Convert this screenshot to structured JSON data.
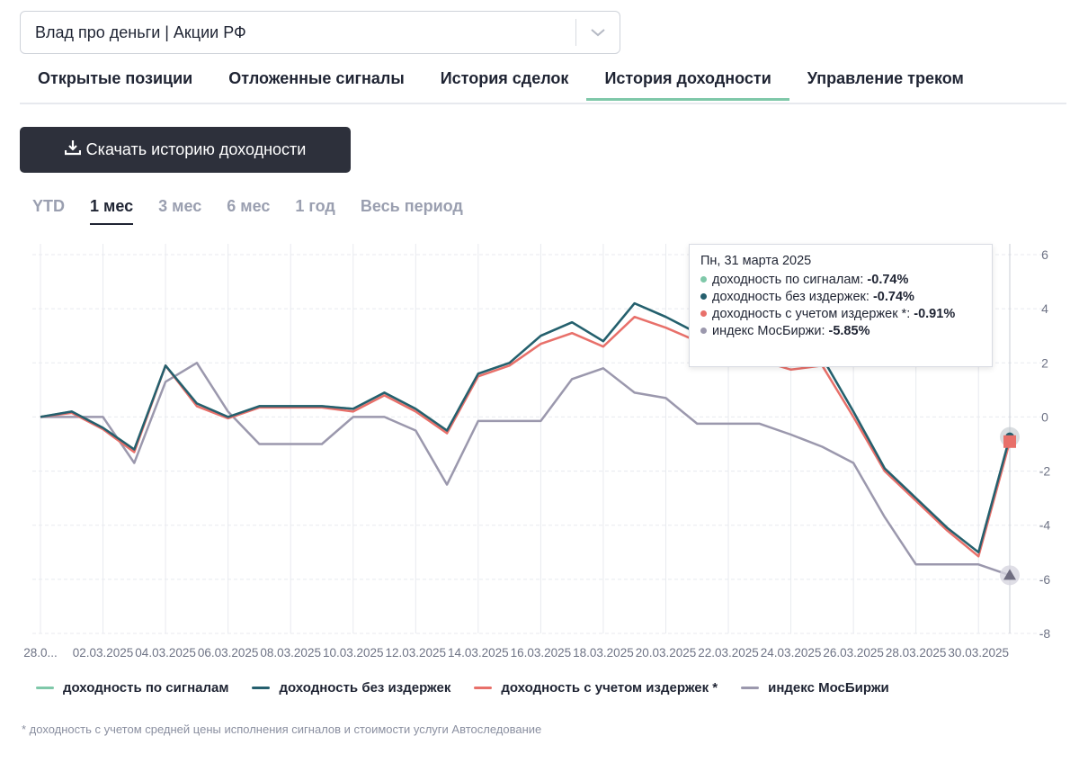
{
  "selector": {
    "value": "Влад про деньги | Акции РФ"
  },
  "tabs": [
    {
      "label": "Открытые позиции"
    },
    {
      "label": "Отложенные сигналы"
    },
    {
      "label": "История сделок"
    },
    {
      "label": "История доходности"
    },
    {
      "label": "Управление треком"
    }
  ],
  "active_tab": "История доходности",
  "download_button": {
    "label": "Скачать историю доходности"
  },
  "periods": [
    {
      "label": "YTD"
    },
    {
      "label": "1 мес"
    },
    {
      "label": "3 мес"
    },
    {
      "label": "6 мес"
    },
    {
      "label": "1 год"
    },
    {
      "label": "Весь период"
    }
  ],
  "active_period": "1 мес",
  "tooltip": {
    "date": "Пн, 31 марта 2025",
    "rows": [
      {
        "label": "доходность по сигналам:",
        "value": "-0.74%",
        "color": "#7fc8a9"
      },
      {
        "label": "доходность без издержек:",
        "value": "-0.74%",
        "color": "#255f6e"
      },
      {
        "label": "доходность с учетом издержек *:",
        "value": "-0.91%",
        "color": "#e8706a"
      },
      {
        "label": "индекс МосБиржи:",
        "value": "-5.85%",
        "color": "#9b98ad"
      }
    ]
  },
  "footnote": "* доходность с учетом средней цены исполнения сигналов и стоимости услуги Автоследование",
  "chart_data": {
    "type": "line",
    "x_tick_labels": [
      "28.0...",
      "02.03.2025",
      "04.03.2025",
      "06.03.2025",
      "08.03.2025",
      "10.03.2025",
      "12.03.2025",
      "14.03.2025",
      "16.03.2025",
      "18.03.2025",
      "20.03.2025",
      "22.03.2025",
      "24.03.2025",
      "26.03.2025",
      "28.03.2025",
      "30.03.2025"
    ],
    "x": [
      "28.02.2025",
      "01.03.2025",
      "02.03.2025",
      "03.03.2025",
      "04.03.2025",
      "05.03.2025",
      "06.03.2025",
      "07.03.2025",
      "08.03.2025",
      "09.03.2025",
      "10.03.2025",
      "11.03.2025",
      "12.03.2025",
      "13.03.2025",
      "14.03.2025",
      "15.03.2025",
      "16.03.2025",
      "17.03.2025",
      "18.03.2025",
      "19.03.2025",
      "20.03.2025",
      "21.03.2025",
      "22.03.2025",
      "23.03.2025",
      "24.03.2025",
      "25.03.2025",
      "26.03.2025",
      "27.03.2025",
      "28.03.2025",
      "29.03.2025",
      "30.03.2025",
      "31.03.2025"
    ],
    "ylim": [
      -8,
      6
    ],
    "yticks": [
      -8,
      -6,
      -4,
      -2,
      0,
      2,
      4,
      6
    ],
    "y_axis_position": "right",
    "grid": true,
    "series": [
      {
        "name": "доходность по сигналам",
        "color": "#7fc8a9",
        "values": [
          0,
          0.2,
          -0.4,
          -1.2,
          1.9,
          0.5,
          0,
          0.4,
          0.4,
          0.4,
          0.3,
          0.9,
          0.3,
          -0.5,
          1.6,
          2,
          3,
          3.5,
          2.8,
          4.2,
          3.7,
          3.1,
          2.6,
          2.4,
          2.1,
          2.2,
          0.2,
          -1.9,
          -3,
          -4.1,
          -5,
          -0.74
        ]
      },
      {
        "name": "доходность без издержек",
        "color": "#255f6e",
        "values": [
          0,
          0.2,
          -0.4,
          -1.2,
          1.9,
          0.5,
          0,
          0.4,
          0.4,
          0.4,
          0.3,
          0.9,
          0.3,
          -0.5,
          1.6,
          2,
          3,
          3.5,
          2.8,
          4.2,
          3.7,
          3.1,
          2.6,
          2.4,
          2.1,
          2.2,
          0.2,
          -1.9,
          -3,
          -4.1,
          -5,
          -0.74
        ]
      },
      {
        "name": "доходность с учетом издержек *",
        "color": "#e8706a",
        "values": [
          0,
          0.15,
          -0.45,
          -1.3,
          1.9,
          0.4,
          -0.05,
          0.35,
          0.35,
          0.35,
          0.2,
          0.8,
          0.2,
          -0.6,
          1.5,
          1.9,
          2.7,
          3.1,
          2.6,
          3.7,
          3.3,
          2.8,
          2.3,
          2.1,
          1.75,
          1.9,
          0,
          -2,
          -3.1,
          -4.2,
          -5.15,
          -0.91
        ]
      },
      {
        "name": "индекс МосБиржи",
        "color": "#9b98ad",
        "values": [
          0,
          0,
          0,
          -1.7,
          1.3,
          2,
          0.2,
          -1,
          -1,
          -1,
          0,
          0,
          -0.5,
          -2.5,
          -0.15,
          -0.15,
          -0.15,
          1.4,
          1.8,
          0.9,
          0.7,
          -0.25,
          -0.25,
          -0.25,
          -0.65,
          -1.1,
          -1.7,
          -3.7,
          -5.45,
          -5.45,
          -5.45,
          -5.85
        ]
      }
    ]
  }
}
